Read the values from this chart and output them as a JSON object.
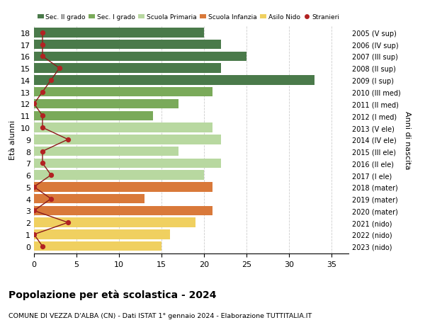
{
  "ages": [
    18,
    17,
    16,
    15,
    14,
    13,
    12,
    11,
    10,
    9,
    8,
    7,
    6,
    5,
    4,
    3,
    2,
    1,
    0
  ],
  "right_labels": [
    "2005 (V sup)",
    "2006 (IV sup)",
    "2007 (III sup)",
    "2008 (II sup)",
    "2009 (I sup)",
    "2010 (III med)",
    "2011 (II med)",
    "2012 (I med)",
    "2013 (V ele)",
    "2014 (IV ele)",
    "2015 (III ele)",
    "2016 (II ele)",
    "2017 (I ele)",
    "2018 (mater)",
    "2019 (mater)",
    "2020 (mater)",
    "2021 (nido)",
    "2022 (nido)",
    "2023 (nido)"
  ],
  "bar_values": [
    20,
    22,
    25,
    22,
    33,
    21,
    17,
    14,
    21,
    22,
    17,
    22,
    20,
    21,
    13,
    21,
    19,
    16,
    15
  ],
  "stranieri_values": [
    1,
    1,
    1,
    3,
    2,
    1,
    0,
    1,
    1,
    4,
    1,
    1,
    2,
    0,
    2,
    0,
    4,
    0,
    1
  ],
  "bar_colors": [
    "#4a7a4a",
    "#4a7a4a",
    "#4a7a4a",
    "#4a7a4a",
    "#4a7a4a",
    "#7aaa5a",
    "#7aaa5a",
    "#7aaa5a",
    "#b8d8a0",
    "#b8d8a0",
    "#b8d8a0",
    "#b8d8a0",
    "#b8d8a0",
    "#d9793a",
    "#d9793a",
    "#d9793a",
    "#f0d060",
    "#f0d060",
    "#f0d060"
  ],
  "legend_labels": [
    "Sec. II grado",
    "Sec. I grado",
    "Scuola Primaria",
    "Scuola Infanzia",
    "Asilo Nido",
    "Stranieri"
  ],
  "legend_colors": [
    "#4a7a4a",
    "#7aaa5a",
    "#b8d8a0",
    "#d9793a",
    "#f0d060",
    "#b22222"
  ],
  "stranieri_line_color": "#8b1a1a",
  "stranieri_dot_color": "#b22222",
  "title": "Popolazione per età scolastica - 2024",
  "subtitle": "COMUNE DI VEZZA D'ALBA (CN) - Dati ISTAT 1° gennaio 2024 - Elaborazione TUTTITALIA.IT",
  "ylabel": "Età alunni",
  "right_ylabel": "Anni di nascita",
  "xlim": [
    0,
    37
  ],
  "xticks": [
    0,
    5,
    10,
    15,
    20,
    25,
    30,
    35
  ],
  "background_color": "#ffffff",
  "grid_color": "#cccccc"
}
